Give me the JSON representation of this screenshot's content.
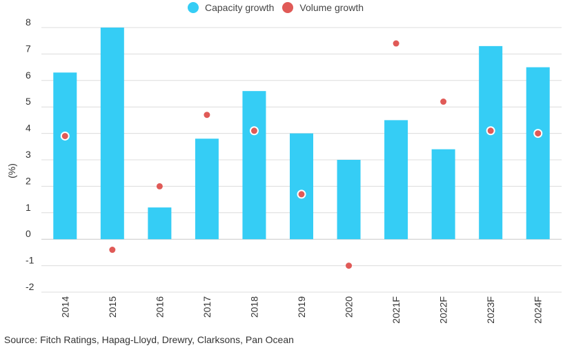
{
  "legend": {
    "items": [
      {
        "label": "Capacity growth",
        "color": "#35cdf5"
      },
      {
        "label": "Volume growth",
        "color": "#e05a57"
      }
    ]
  },
  "source": "Source: Fitch Ratings,  Hapag-Lloyd, Drewry, Clarksons,  Pan Ocean",
  "chart_data": {
    "type": "bar",
    "categories": [
      "2014",
      "2015",
      "2016",
      "2017",
      "2018",
      "2019",
      "2020",
      "2021F",
      "2022F",
      "2023F",
      "2024F"
    ],
    "series": [
      {
        "name": "Capacity growth",
        "type": "bar",
        "color": "#35cdf5",
        "values": [
          6.3,
          8.0,
          1.2,
          3.8,
          5.6,
          4.0,
          3.0,
          4.5,
          3.4,
          7.3,
          6.5
        ]
      },
      {
        "name": "Volume growth",
        "type": "scatter",
        "color": "#e05a57",
        "values": [
          3.9,
          -0.4,
          2.0,
          4.7,
          4.1,
          1.7,
          -1.0,
          7.4,
          5.2,
          4.1,
          4.0
        ]
      }
    ],
    "ylabel": "(%)",
    "xlabel": "",
    "ylim": [
      -2,
      8
    ],
    "yticks": [
      -2,
      -1,
      0,
      1,
      2,
      3,
      4,
      5,
      6,
      7,
      8
    ],
    "grid": true,
    "legend_position": "top-center"
  }
}
